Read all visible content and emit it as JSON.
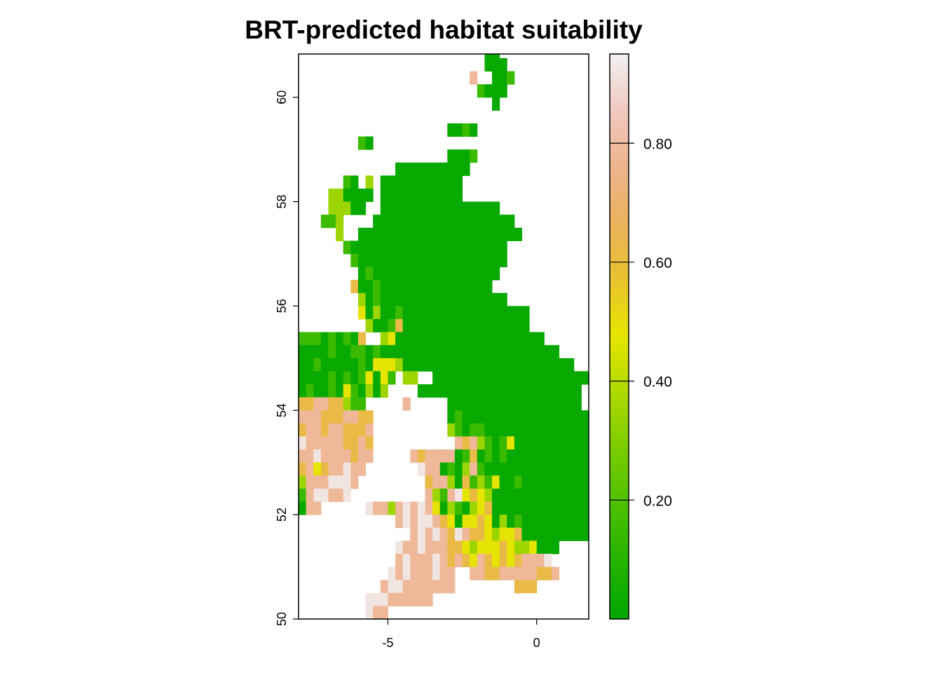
{
  "title": "BRT-predicted habitat suitability",
  "map": {
    "x_range": [
      -8.0,
      1.75
    ],
    "y_range": [
      50.0,
      60.83
    ],
    "x_ticks": [
      {
        "value": -5,
        "label": "-5"
      },
      {
        "value": 0,
        "label": "0"
      }
    ],
    "y_ticks": [
      {
        "value": 50,
        "label": "50"
      },
      {
        "value": 52,
        "label": "52"
      },
      {
        "value": 54,
        "label": "54"
      },
      {
        "value": 56,
        "label": "56"
      },
      {
        "value": 58,
        "label": "58"
      },
      {
        "value": 60,
        "label": "60"
      }
    ]
  },
  "legend": {
    "range": [
      0.0,
      0.95
    ],
    "ticks": [
      {
        "value": 0.2,
        "label": "0.20"
      },
      {
        "value": 0.4,
        "label": "0.40"
      },
      {
        "value": 0.6,
        "label": "0.60"
      },
      {
        "value": 0.8,
        "label": "0.80"
      }
    ],
    "palette": [
      "#00A600",
      "#24B300",
      "#4CC000",
      "#7ACC00",
      "#ADD900",
      "#E6E600",
      "#E8C32E",
      "#EBB25E",
      "#EDB48E",
      "#F0C9C0",
      "#F2F2F2"
    ]
  },
  "raster": {
    "resolution_degrees": 0.25,
    "legend_key": "G very low (~0.02), g low (~0.15), l ~0.35, y ~0.48, o ~0.62, p ~0.78, w ~0.92; '.' no data",
    "rows": [
      {
        "lat": 60.75,
        "lon_start": -1.75,
        "cells": "GG"
      },
      {
        "lat": 60.5,
        "lon_start": -1.75,
        "cells": "GGG"
      },
      {
        "lat": 60.25,
        "lon_start": -2.25,
        "cells": "p..GGg"
      },
      {
        "lat": 60.0,
        "lon_start": -2.0,
        "cells": "gGGG"
      },
      {
        "lat": 59.75,
        "lon_start": -1.5,
        "cells": "G"
      },
      {
        "lat": 59.25,
        "lon_start": -3.0,
        "cells": "GGgG"
      },
      {
        "lat": 59.0,
        "lon_start": -6.0,
        "cells": "gG"
      },
      {
        "lat": 58.75,
        "lon_start": -3.0,
        "cells": "GGGg"
      },
      {
        "lat": 58.5,
        "lon_start": -4.75,
        "cells": "GGGGGGGGGG"
      },
      {
        "lat": 58.25,
        "lon_start": -6.5,
        "cells": "gG.l.GGGGGGGGGGG"
      },
      {
        "lat": 58.0,
        "lon_start": -7.0,
        "cells": "llGGGG.GGGGGGGGGGG"
      },
      {
        "lat": 57.75,
        "lon_start": -7.0,
        "cells": "lllGG..GGGGGGGGGGGGGGGG"
      },
      {
        "lat": 57.5,
        "lon_start": -7.25,
        "cells": "ggl....GGGGGGGGGGGGGGGGGGG"
      },
      {
        "lat": 57.25,
        "lon_start": -6.75,
        "cells": "l..GGGGGGGGGGGGGGGGGGGGGG"
      },
      {
        "lat": 57.0,
        "lon_start": -6.5,
        "cells": "gGGGGGGGGGGGGGGGGGGGGG"
      },
      {
        "lat": 56.75,
        "lon_start": -6.25,
        "cells": "gGGGGGGGGGGGGGGGGGGGG"
      },
      {
        "lat": 56.5,
        "lon_start": -6.0,
        "cells": "GgGGGGGGGGGGGGGGGGG"
      },
      {
        "lat": 56.25,
        "lon_start": -6.25,
        "cells": "oGGgGGGGGGGGGGGGGGG"
      },
      {
        "lat": 56.0,
        "lon_start": -6.0,
        "cells": "lGgGGGGGGGGGGGGGGGGG"
      },
      {
        "lat": 55.75,
        "lon_start": -6.0,
        "cells": "yGlGGgGGGGGGGGGGGGGGGGG"
      },
      {
        "lat": 55.5,
        "lon_start": -5.75,
        "cells": "lGGgoGGGGGGGGGGGGGGGGG"
      },
      {
        "lat": 55.25,
        "lon_start": -8.0,
        "cells": "gggGgGgGo..lyGGGGGGGGGGGGGGGGGGGG"
      },
      {
        "lat": 55.0,
        "lon_start": -8.0,
        "cells": "GGGGgGGggGgGGGGGGGGGGGGGGGGGGGGGGGG"
      },
      {
        "lat": 54.75,
        "lon_start": -8.0,
        "cells": "GGgGGGGGgGyyylGGGGGGGGGGGGGGGGGGGGGGG"
      },
      {
        "lat": 54.5,
        "lon_start": -8.0,
        "cells": "GGGGgGgGgyGyg.ll..GGGGGGGGGGGGGGGGGGGGG"
      },
      {
        "lat": 54.25,
        "lon_start": -8.0,
        "cells": "GgGGgGygGlGl....GGGGGGGGGGGGGGGGGGGGGG"
      },
      {
        "lat": 54.0,
        "lon_start": -8.0,
        "cells": "ooppoolgg.....p.....GGGGGGGGGGGGGGGGGG"
      },
      {
        "lat": 53.75,
        "lon_start": -8.0,
        "cells": "pppoooppoo..........GgGGGGGGGGGGGGGGGGG"
      },
      {
        "lat": 53.5,
        "lon_start": -8.0,
        "cells": "oppoppooop..........lgGggGGGGGGGGGGGGGG"
      },
      {
        "lat": 53.25,
        "lon_start": -8.0,
        "cells": "wpppppoopo...........poplgGgyGGGGGGGGGGG"
      },
      {
        "lat": 53.0,
        "lon_start": -8.0,
        "cells": "ppwppppopp.....poppppGgoGgGgGGGGGGGGGGGG"
      },
      {
        "lat": 52.75,
        "lon_start": -8.0,
        "cells": "opyoppwpp.......wppGgGlpgGGGGGGGGGGGGGGGGGG"
      },
      {
        "lat": 52.5,
        "lon_start": -8.0,
        "cells": "lpppwwwp.........opplGoglgyGGgGGGGGGGGGGGGG"
      },
      {
        "lat": 52.25,
        "lon_start": -8.0,
        "cells": "gpwwppw..........plgpwyoylGGGGGGGGGGGGGGGGG"
      },
      {
        "lat": 52.0,
        "lon_start": -8.0,
        "cells": "Gpp......wpplpwpwpyGlgGlyoGGGGGGGGGGGGGGGG"
      },
      {
        "lat": 51.75,
        "lon_start": -4.75,
        "cells": "pwpwwpoyGyyoyGlGgGGGGGGGGG"
      },
      {
        "lat": 51.5,
        "lon_start": -4.25,
        "cells": "pwpwpowpooylyyoGGGGGGGGG"
      },
      {
        "lat": 51.25,
        "lon_start": -4.75,
        "cells": "wppwpppooylyyyoyllyGGG"
      },
      {
        "lat": 51.0,
        "lon_start": -4.75,
        "cells": "pwpppwpopoypoyoyopppw"
      },
      {
        "lat": 50.75,
        "lon_start": -5.0,
        "cells": "wpwpppwpp..ppoopppppoop.....G"
      },
      {
        "lat": 50.5,
        "lon_start": -5.25,
        "cells": "pwwppppppp........ooo.........G"
      },
      {
        "lat": 50.25,
        "lon_start": -5.75,
        "cells": "wwwpppppp........................l"
      },
      {
        "lat": 50.0,
        "lon_start": -5.75,
        "cells": "wpp.............................lo"
      }
    ]
  }
}
